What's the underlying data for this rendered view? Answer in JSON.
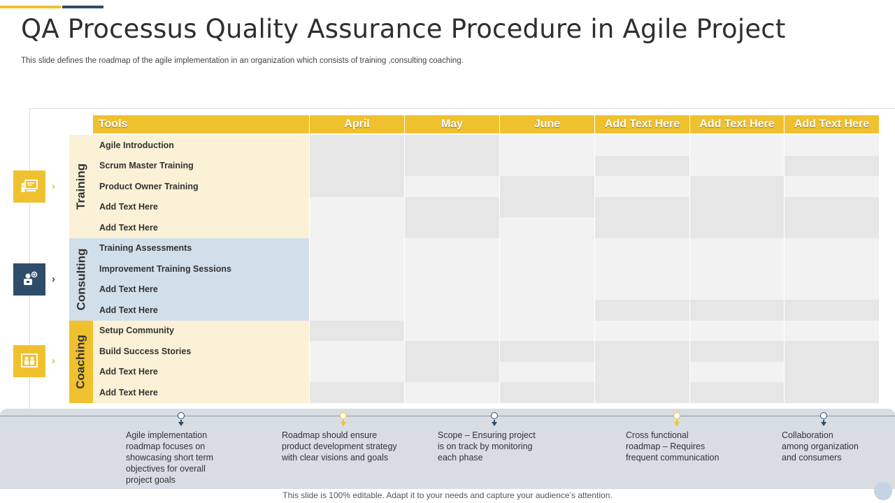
{
  "colors": {
    "accent_yellow": "#f0c12f",
    "accent_navy": "#2e4d6b",
    "training_band": "#faf1d6",
    "consulting_band": "#d1dfeb",
    "coaching_band": "#faf1d6",
    "fill_dark": "#e6e6e6",
    "fill_light": "#f2f2f2"
  },
  "title": "QA Processus Quality Assurance Procedure in Agile Project",
  "subtitle": "This slide defines the roadmap of the agile implementation in  an organization which consists of training ,consulting coaching.",
  "header": {
    "tools": "Tools",
    "columns": [
      "April",
      "May",
      "June",
      "Add Text Here",
      "Add Text Here",
      "Add Text Here"
    ]
  },
  "categories": [
    {
      "label": "Training",
      "icon": "presentation-icon",
      "icon_color": "#f0c12f",
      "tasks": [
        "Agile Introduction",
        "Scrum Master Training",
        "Product Owner Training",
        "Add Text Here",
        "Add Text Here"
      ]
    },
    {
      "label": "Consulting",
      "icon": "consultant-icon",
      "icon_color": "#2e4d6b",
      "tasks": [
        "Training Assessments",
        "Improvement Training Sessions",
        "Add Text Here",
        "Add Text Here"
      ]
    },
    {
      "label": "Coaching",
      "icon": "group-board-icon",
      "icon_color": "#f0c12f",
      "tasks": [
        "Setup Community",
        "Build Success Stories",
        "Add Text Here",
        "Add Text Here"
      ]
    }
  ],
  "gantt_fills": [
    "DDLLLL",
    "DDLDLD",
    "DLDLDL",
    "LDDDDD",
    "LDLDDD",
    "LLLLLL",
    "LLLLLL",
    "LLLLLL",
    "LLLDDD",
    "DLLLLL",
    "LDDDDD",
    "LDLDLD",
    "DLDDDD"
  ],
  "timeline": [
    {
      "text": "Agile implementation\nroadmap focuses on\nshowcasing short term\nobjectives for overall\nproject goals",
      "color": "#2e4d6b"
    },
    {
      "text": "Roadmap should ensure\nproduct development  strategy\nwith clear visions and goals",
      "color": "#f0c12f"
    },
    {
      "text": "Scope – Ensuring project\nis on track by monitoring\neach phase",
      "color": "#2e4d6b"
    },
    {
      "text": "Cross functional\nroadmap – Requires\nfrequent communication",
      "color": "#f0c12f"
    },
    {
      "text": "Collaboration\namong organization\n and consumers",
      "color": "#2e4d6b"
    }
  ],
  "footer": "This slide is 100% editable. Adapt it to your needs and capture your audience’s attention."
}
